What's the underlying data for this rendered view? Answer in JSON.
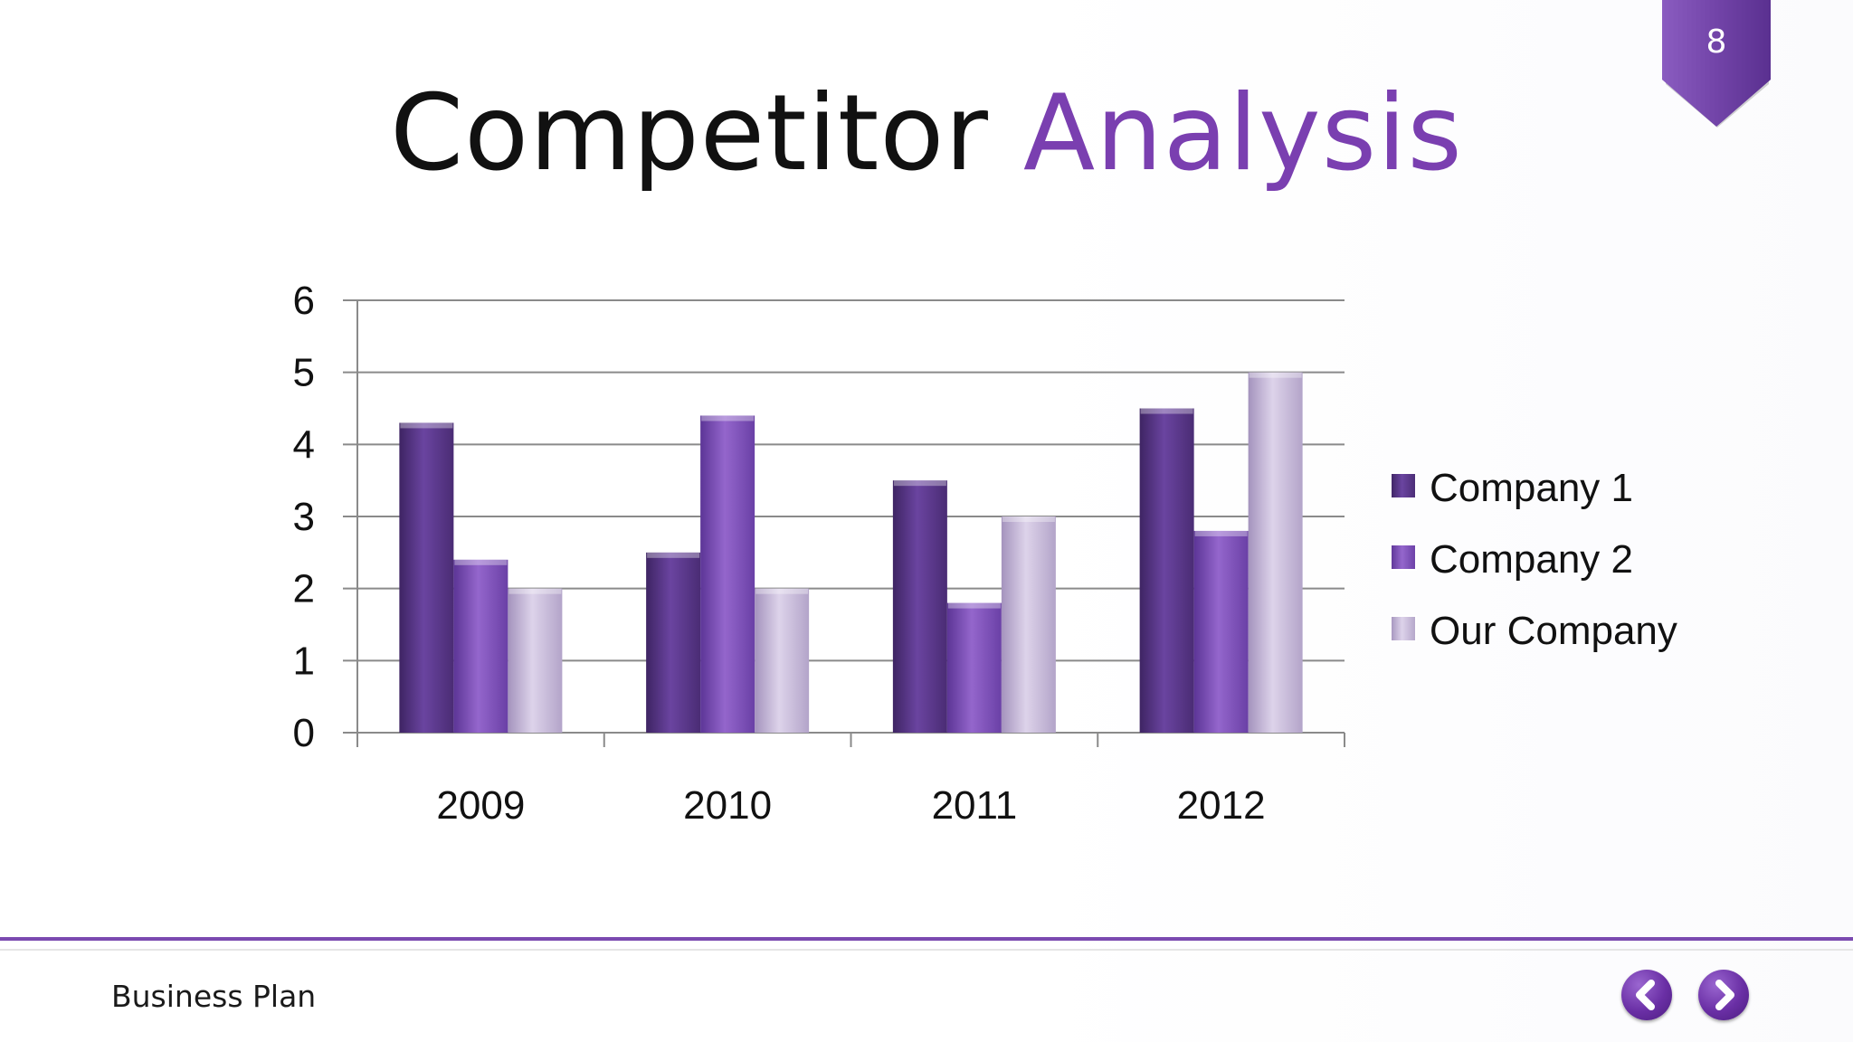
{
  "slide": {
    "title_main": "Competitor",
    "title_accent": "Analysis",
    "page_number": "8",
    "footer_text": "Business Plan",
    "accent_color": "#7a3fb0"
  },
  "navigation": {
    "prev_icon": "chevron-left-icon",
    "next_icon": "chevron-right-icon"
  },
  "chart_data": {
    "type": "bar",
    "categories": [
      "2009",
      "2010",
      "2011",
      "2012"
    ],
    "series": [
      {
        "name": "Company 1",
        "values": [
          4.3,
          2.5,
          3.5,
          4.5
        ],
        "color": "#5e3a8c"
      },
      {
        "name": "Company 2",
        "values": [
          2.4,
          4.4,
          1.8,
          2.8
        ],
        "color": "#7c52b6"
      },
      {
        "name": "Our Company",
        "values": [
          2.0,
          2.0,
          3.0,
          5.0
        ],
        "color": "#bfb0d3"
      }
    ],
    "ylim": [
      0,
      6
    ],
    "yticks": [
      "0",
      "1",
      "2",
      "3",
      "4",
      "5",
      "6"
    ],
    "grid": true,
    "legend": "right"
  }
}
